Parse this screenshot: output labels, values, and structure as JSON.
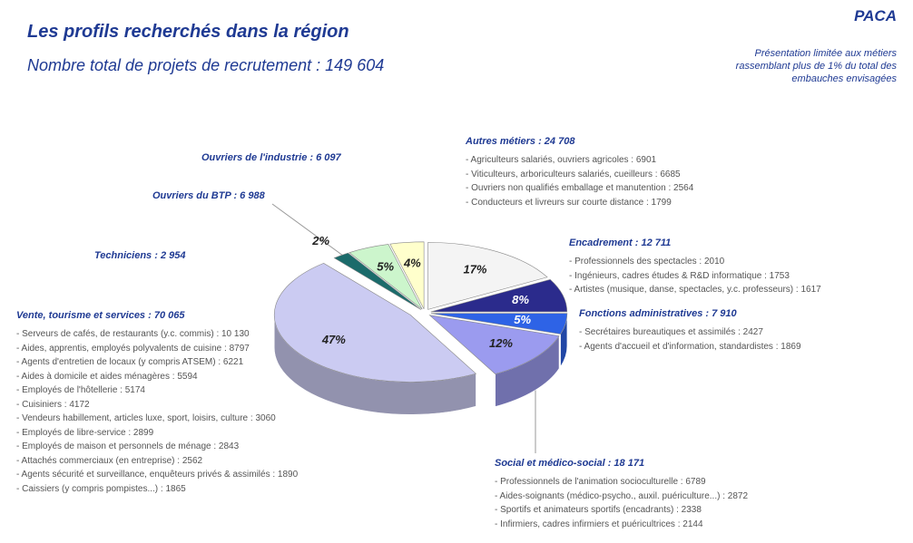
{
  "header": {
    "region": "PACA",
    "note": [
      "Présentation limitée aux métiers",
      "rassemblant plus de 1% du total des",
      "embauches envisagées"
    ]
  },
  "chart_data": {
    "type": "pie",
    "title": "Les profils recherchés dans la région",
    "subtitle": "Nombre total de projets de recrutement : 149 604",
    "categories": [
      "Autres métiers : 24 708",
      "Encadrement : 12 711",
      "Fonctions administratives : 7 910",
      "Social et médico-social : 18 171",
      "Vente, tourisme et services : 70 065",
      "Techniciens : 2 954",
      "Ouvriers du BTP : 6 988",
      "Ouvriers de l'industrie : 6 097"
    ],
    "values": [
      17,
      8,
      5,
      12,
      47,
      2,
      5,
      4
    ],
    "value_labels": [
      "17%",
      "8%",
      "5%",
      "12%",
      "47%",
      "2%",
      "5%",
      "4%"
    ],
    "colors": [
      "#f4f4f4",
      "#2b2b8c",
      "#2e63e6",
      "#9b9bef",
      "#cbcbf2",
      "#1b6b6b",
      "#ccf5cc",
      "#ffffcc"
    ],
    "details": [
      [
        "- Agriculteurs salariés, ouvriers agricoles : 6901",
        "- Viticulteurs, arboriculteurs salariés, cueilleurs : 6685",
        "- Ouvriers non qualifiés emballage et manutention : 2564",
        "- Conducteurs et livreurs sur courte distance : 1799"
      ],
      [
        "- Professionnels des spectacles : 2010",
        "- Ingénieurs, cadres études & R&D informatique : 1753",
        "- Artistes (musique, danse, spectacles, y.c. professeurs) : 1617"
      ],
      [
        "- Secrétaires bureautiques et assimilés : 2427",
        "- Agents d'accueil et d'information, standardistes : 1869"
      ],
      [
        "- Professionnels de l'animation socioculturelle : 6789",
        "- Aides-soignants (médico-psycho., auxil. puériculture...) : 2872",
        "- Sportifs et animateurs sportifs (encadrants) : 2338",
        "- Infirmiers, cadres infirmiers et puéricultrices : 2144"
      ],
      [
        "- Serveurs de cafés, de restaurants (y.c. commis) : 10 130",
        "- Aides, apprentis, employés polyvalents de cuisine : 8797",
        "- Agents d'entretien de locaux (y compris ATSEM) : 6221",
        "- Aides à domicile et aides ménagères : 5594",
        "- Employés de l'hôtellerie : 5174",
        "- Cuisiniers : 4172",
        "- Vendeurs habillement, articles luxe, sport, loisirs, culture : 3060",
        "- Employés de libre-service : 2899",
        "- Employés de maison et personnels de ménage : 2843",
        "- Attachés commerciaux (en entreprise) : 2562",
        "- Agents sécurité et surveillance, enquêteurs privés & assimilés : 1890",
        "- Caissiers (y compris pompistes...) : 1865"
      ],
      [],
      [],
      []
    ]
  }
}
